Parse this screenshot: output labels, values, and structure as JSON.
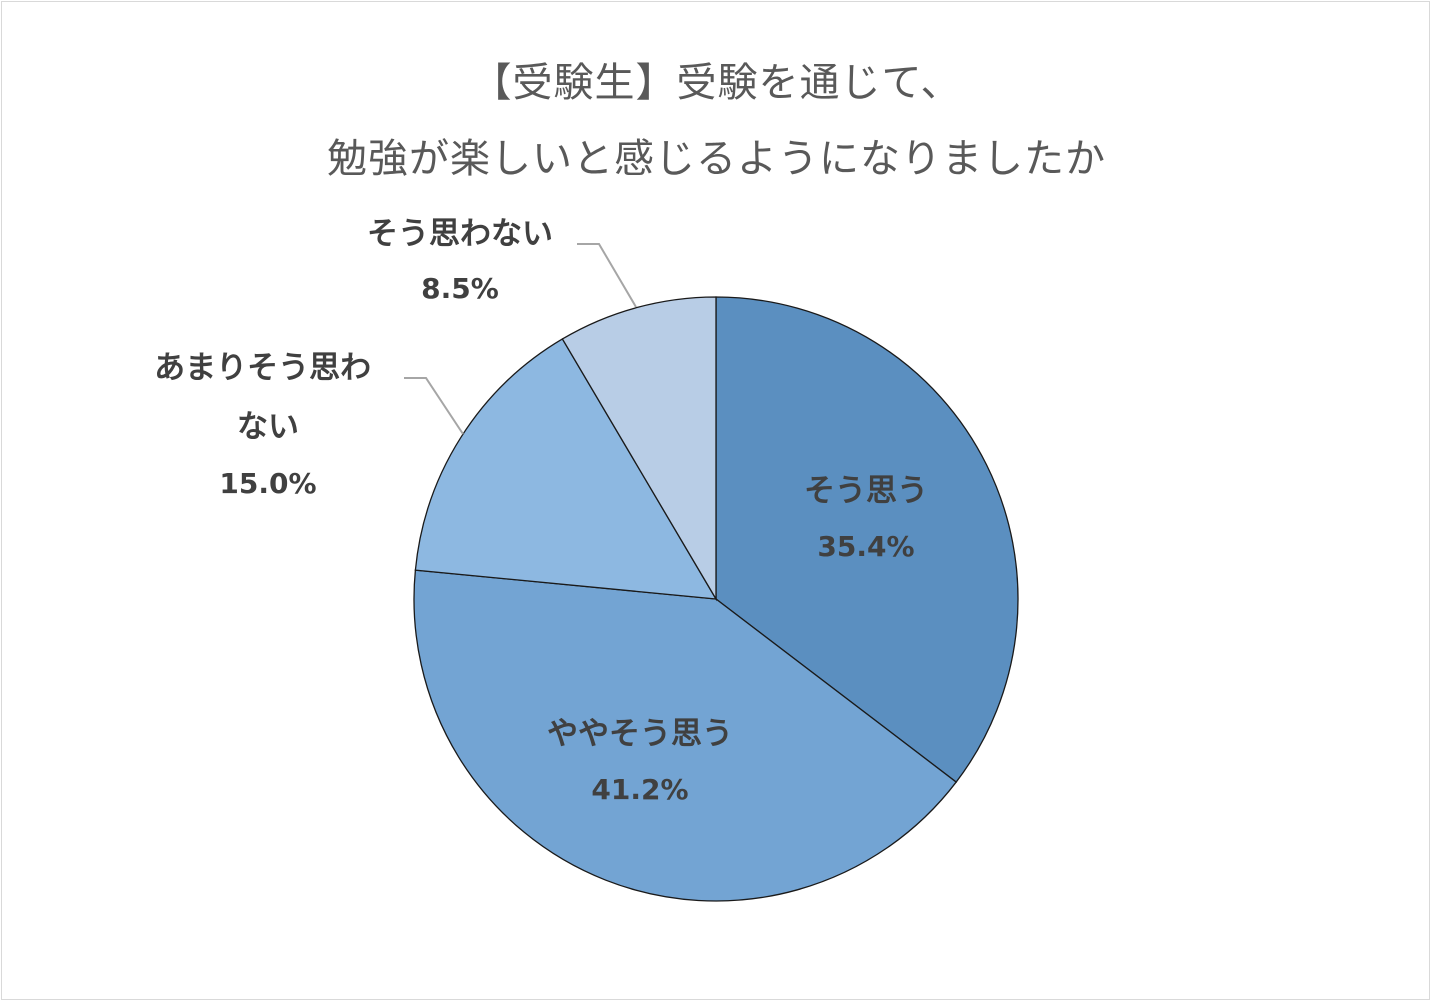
{
  "chart_data": {
    "type": "pie",
    "title_lines": [
      "【受験生】受験を通じて、",
      "勉強が楽しいと感じるようになりましたか"
    ],
    "slices": [
      {
        "label": "そう思う",
        "value_label": "35.4%",
        "value": 35.4,
        "color": "#5b8fc0"
      },
      {
        "label": "ややそう思う",
        "value_label": "41.2%",
        "value": 41.2,
        "color": "#73a4d3"
      },
      {
        "label": "あまりそう思わない",
        "value_label": "15.0%",
        "value": 15.0,
        "color": "#8db8e1"
      },
      {
        "label": "そう思わない",
        "value_label": "8.5%",
        "value": 8.5,
        "color": "#b8cde6"
      }
    ],
    "start_angle_deg": 0,
    "direction": "clockwise",
    "legend": "none"
  }
}
